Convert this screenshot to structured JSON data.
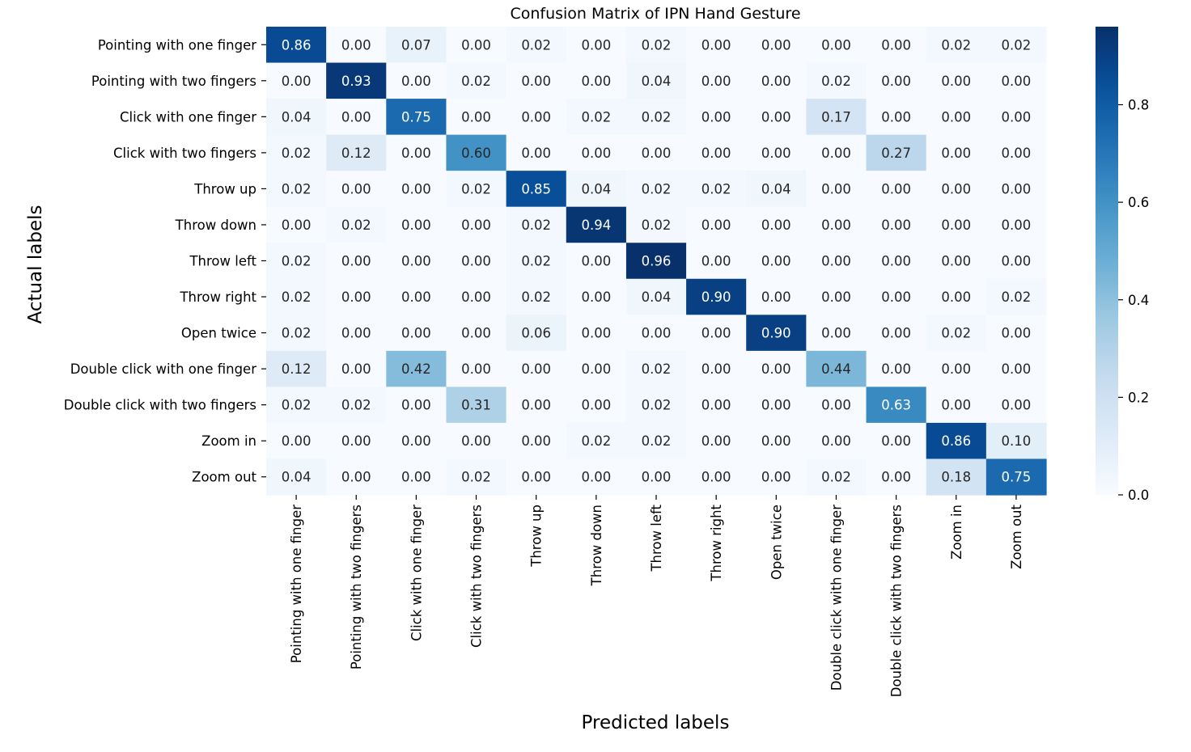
{
  "chart_data": {
    "type": "heatmap",
    "title": "Confusion Matrix of IPN Hand Gesture",
    "xlabel": "Predicted labels",
    "ylabel": "Actual labels",
    "x_categories": [
      "Pointing with one finger",
      "Pointing with two fingers",
      "Click with one finger",
      "Click with two fingers",
      "Throw up",
      "Throw down",
      "Throw left",
      "Throw right",
      "Open twice",
      "Double click with one finger",
      "Double click with two fingers",
      "Zoom in",
      "Zoom out"
    ],
    "y_categories": [
      "Pointing with one finger",
      "Pointing with two fingers",
      "Click with one finger",
      "Click with two fingers",
      "Throw up",
      "Throw down",
      "Throw left",
      "Throw right",
      "Open twice",
      "Double click with one finger",
      "Double click with two fingers",
      "Zoom in",
      "Zoom out"
    ],
    "values": [
      [
        0.86,
        0.0,
        0.07,
        0.0,
        0.02,
        0.0,
        0.02,
        0.0,
        0.0,
        0.0,
        0.0,
        0.02,
        0.02
      ],
      [
        0.0,
        0.93,
        0.0,
        0.02,
        0.0,
        0.0,
        0.04,
        0.0,
        0.0,
        0.02,
        0.0,
        0.0,
        0.0
      ],
      [
        0.04,
        0.0,
        0.75,
        0.0,
        0.0,
        0.02,
        0.02,
        0.0,
        0.0,
        0.17,
        0.0,
        0.0,
        0.0
      ],
      [
        0.02,
        0.12,
        0.0,
        0.6,
        0.0,
        0.0,
        0.0,
        0.0,
        0.0,
        0.0,
        0.27,
        0.0,
        0.0
      ],
      [
        0.02,
        0.0,
        0.0,
        0.02,
        0.85,
        0.04,
        0.02,
        0.02,
        0.04,
        0.0,
        0.0,
        0.0,
        0.0
      ],
      [
        0.0,
        0.02,
        0.0,
        0.0,
        0.02,
        0.94,
        0.02,
        0.0,
        0.0,
        0.0,
        0.0,
        0.0,
        0.0
      ],
      [
        0.02,
        0.0,
        0.0,
        0.0,
        0.02,
        0.0,
        0.96,
        0.0,
        0.0,
        0.0,
        0.0,
        0.0,
        0.0
      ],
      [
        0.02,
        0.0,
        0.0,
        0.0,
        0.02,
        0.0,
        0.04,
        0.9,
        0.0,
        0.0,
        0.0,
        0.0,
        0.02
      ],
      [
        0.02,
        0.0,
        0.0,
        0.0,
        0.06,
        0.0,
        0.0,
        0.0,
        0.9,
        0.0,
        0.0,
        0.02,
        0.0
      ],
      [
        0.12,
        0.0,
        0.42,
        0.0,
        0.0,
        0.0,
        0.02,
        0.0,
        0.0,
        0.44,
        0.0,
        0.0,
        0.0
      ],
      [
        0.02,
        0.02,
        0.0,
        0.31,
        0.0,
        0.0,
        0.02,
        0.0,
        0.0,
        0.0,
        0.63,
        0.0,
        0.0
      ],
      [
        0.0,
        0.0,
        0.0,
        0.0,
        0.0,
        0.02,
        0.02,
        0.0,
        0.0,
        0.0,
        0.0,
        0.86,
        0.1
      ],
      [
        0.04,
        0.0,
        0.0,
        0.02,
        0.0,
        0.0,
        0.0,
        0.0,
        0.0,
        0.02,
        0.0,
        0.18,
        0.75
      ]
    ],
    "value_format": "0.00",
    "colormap": "Blues",
    "colormap_stops": [
      "#f7fbff",
      "#deebf7",
      "#c6dbef",
      "#9ecae1",
      "#6baed6",
      "#4292c6",
      "#2171b5",
      "#08519c",
      "#08306b"
    ],
    "vmin": 0.0,
    "vmax": 0.96,
    "colorbar": {
      "ticks": [
        0.0,
        0.2,
        0.4,
        0.6,
        0.8
      ],
      "tick_labels": [
        "0.0",
        "0.2",
        "0.4",
        "0.6",
        "0.8"
      ]
    },
    "grid": false,
    "text_color_dark": "#262626",
    "text_color_light": "#ffffff"
  }
}
